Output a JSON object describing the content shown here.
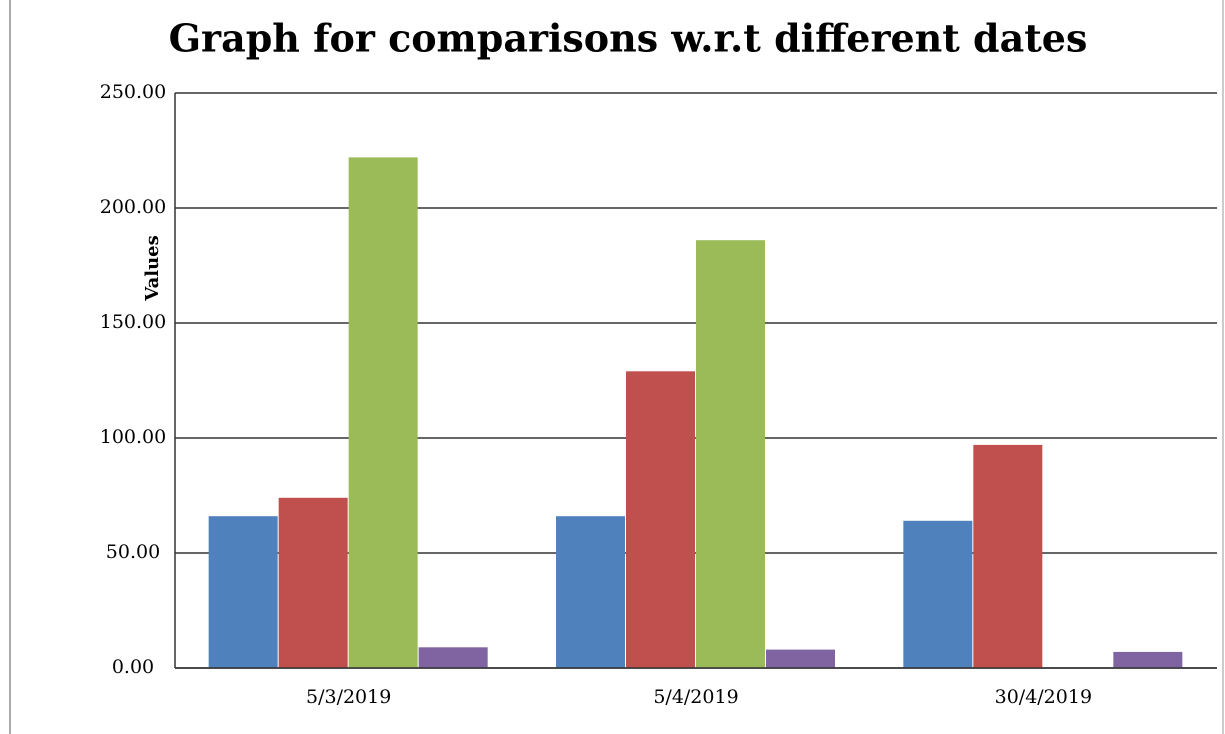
{
  "chart_data": {
    "type": "bar",
    "title": "Graph for comparisons w.r.t different dates",
    "y_label": "Values",
    "categories": [
      "5/3/2019",
      "5/4/2019",
      "30/4/2019"
    ],
    "series": [
      {
        "color": "#4f81bd",
        "values": [
          66,
          66,
          64
        ]
      },
      {
        "color": "#c0504d",
        "values": [
          74,
          129,
          97
        ]
      },
      {
        "color": "#9bbb59",
        "values": [
          222,
          186,
          0
        ]
      },
      {
        "color": "#8064a2",
        "values": [
          9,
          8,
          7
        ]
      }
    ],
    "ylim": [
      0,
      250
    ],
    "yticks": [
      {
        "value": 0,
        "label": "0.00"
      },
      {
        "value": 50,
        "label": "50.00"
      },
      {
        "value": 100,
        "label": "100.00"
      },
      {
        "value": 150,
        "label": "150.00"
      },
      {
        "value": 200,
        "label": "200.00"
      },
      {
        "value": 250,
        "label": "250.00"
      }
    ],
    "grid": true
  }
}
